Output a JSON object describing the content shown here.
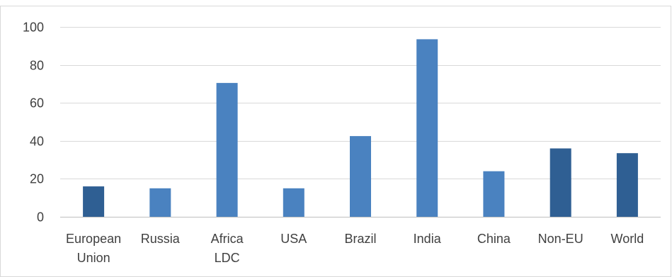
{
  "chart_data": {
    "type": "bar",
    "title": "",
    "xlabel": "",
    "ylabel": "",
    "ylim": [
      0,
      100
    ],
    "yticks": [
      0,
      20,
      40,
      60,
      80,
      100
    ],
    "grid": true,
    "legend": "none",
    "categories": [
      [
        "European",
        "Union"
      ],
      [
        "Russia"
      ],
      [
        "Africa",
        "LDC"
      ],
      [
        "USA"
      ],
      [
        "Brazil"
      ],
      [
        "India"
      ],
      [
        "China"
      ],
      [
        "Non-EU"
      ],
      [
        "World"
      ]
    ],
    "values": [
      16,
      15,
      70.5,
      15,
      42.5,
      93.5,
      24,
      36,
      33.5
    ],
    "colors": [
      "#2f5f93",
      "#4a82c0",
      "#4a82c0",
      "#4a82c0",
      "#4a82c0",
      "#4a82c0",
      "#4a82c0",
      "#2f5f93",
      "#2f5f93"
    ]
  }
}
